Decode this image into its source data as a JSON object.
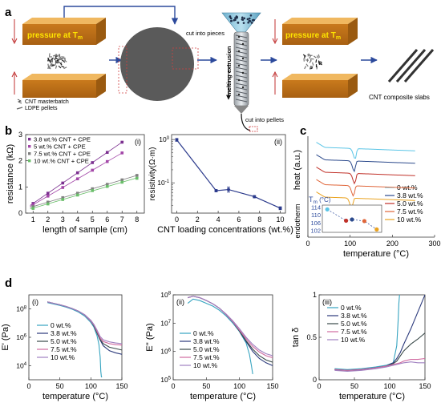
{
  "panel_labels": {
    "a": "a",
    "b": "b",
    "c": "c",
    "d": "d"
  },
  "panel_a": {
    "press1_text": "pressure at T",
    "press1_sub": "m",
    "legend_cnt": "CNT masterbatch",
    "legend_ldpe": "LDPE pellets",
    "cut_pieces": "cut into pieces",
    "melting": "melting extrusion",
    "cut_pellets": "cut into  pellets",
    "press2_text": "pressure at T",
    "press2_sub": "m",
    "slabs": "CNT composite slabs"
  },
  "chart_data": [
    {
      "id": "b-i",
      "type": "scatter",
      "panel_tag": "(i)",
      "xlabel": "length of sample (cm)",
      "ylabel": "resistance (kΩ)",
      "xlim": [
        0.5,
        8.5
      ],
      "ylim": [
        0,
        3
      ],
      "xticks": [
        1,
        2,
        3,
        4,
        5,
        6,
        7,
        8
      ],
      "yticks": [
        0,
        1,
        2,
        3
      ],
      "legend_position": "top-left",
      "series": [
        {
          "name": "3.8 wt.% CNT + CPE",
          "color": "#7b2f8f",
          "x": [
            1,
            2,
            3,
            4,
            5,
            6,
            7
          ],
          "y": [
            0.37,
            0.76,
            1.15,
            1.54,
            1.93,
            2.32,
            2.71
          ],
          "err": 0.04
        },
        {
          "name": "5 wt.% CNT + CPE",
          "color": "#a347a8",
          "x": [
            1,
            2,
            3,
            4,
            5,
            6,
            7
          ],
          "y": [
            0.32,
            0.65,
            0.98,
            1.31,
            1.64,
            1.97,
            2.3
          ],
          "err": 0.04
        },
        {
          "name": "7.5 wt.% CNT + CPE",
          "color": "#808080",
          "x": [
            1,
            2,
            3,
            4,
            5,
            6,
            7,
            8
          ],
          "y": [
            0.25,
            0.42,
            0.59,
            0.76,
            0.93,
            1.1,
            1.27,
            1.44
          ],
          "err": 0.03
        },
        {
          "name": "10 wt.% CNT + CPE",
          "color": "#6abe6a",
          "x": [
            1,
            2,
            3,
            4,
            5,
            6,
            7,
            8
          ],
          "y": [
            0.18,
            0.35,
            0.52,
            0.69,
            0.86,
            1.02,
            1.18,
            1.33
          ],
          "err": 0.03
        }
      ]
    },
    {
      "id": "b-ii",
      "type": "line",
      "panel_tag": "(ii)",
      "xlabel": "CNT loading concentrations (wt.%)",
      "ylabel": "resistivity(Ω·m)",
      "xlim": [
        -0.5,
        10.5
      ],
      "ylim": [
        0.02,
        1.3
      ],
      "yscale": "log",
      "xticks": [
        0,
        2,
        4,
        6,
        8,
        10
      ],
      "yticks": [
        {
          "v": 1,
          "label": "10",
          "exp": "0"
        },
        {
          "v": 0.1,
          "label": "10",
          "exp": "-1"
        }
      ],
      "series": [
        {
          "name": "",
          "color": "#2b3a8c",
          "x": [
            0,
            3.8,
            5,
            7.5,
            10
          ],
          "y": [
            0.98,
            0.066,
            0.07,
            0.048,
            0.026
          ],
          "err_lo": [
            0.91,
            0.062,
            0.061,
            0.045,
            0.024
          ],
          "err_hi": [
            1.06,
            0.07,
            0.08,
            0.051,
            0.028
          ]
        }
      ]
    },
    {
      "id": "c",
      "type": "line",
      "xlabel": "temperature (°C)",
      "ylabel": "heat (a.u.)",
      "ylabel2": "endotherm",
      "xlim": [
        0,
        300
      ],
      "xticks": [
        0,
        100,
        200,
        300
      ],
      "legend_position": "bottom-right",
      "series": [
        {
          "name": "0 wt.%",
          "color": "#5bc5e6",
          "offset": 4
        },
        {
          "name": "3.8 wt.%",
          "color": "#2c4a8c",
          "offset": 3
        },
        {
          "name": "5.0 wt.%",
          "color": "#c03028",
          "offset": 2
        },
        {
          "name": "7.5 wt.%",
          "color": "#e0663a",
          "offset": 1
        },
        {
          "name": "10 wt.%",
          "color": "#eaa320",
          "offset": 0
        }
      ],
      "inset": {
        "title": "T",
        "title_sub": "m",
        "title_unit": " (°C)",
        "yticks": [
          114,
          110,
          106,
          102
        ],
        "ylim": [
          101,
          115
        ],
        "xlim": [
          -1,
          11
        ],
        "points": [
          {
            "x": 0,
            "y": 112.8,
            "color": "#5bc5e6"
          },
          {
            "x": 3.8,
            "y": 107.0,
            "color": "#c03028"
          },
          {
            "x": 5,
            "y": 107.6,
            "color": "#2c4a8c"
          },
          {
            "x": 7.5,
            "y": 106.8,
            "color": "#e0663a"
          },
          {
            "x": 10,
            "y": 102.5,
            "color": "#eaa320"
          }
        ]
      }
    },
    {
      "id": "d-i",
      "type": "line",
      "panel_tag": "(i)",
      "xlabel": "temperature (°C)",
      "ylabel": "E' (Pa)",
      "xlim": [
        0,
        150
      ],
      "xticks": [
        0,
        50,
        100,
        150
      ],
      "yscale": "log",
      "ylim": [
        3,
        9
      ],
      "yticks": [
        {
          "v": 4,
          "label": "10",
          "exp": "4"
        },
        {
          "v": 6,
          "label": "10",
          "exp": "6"
        },
        {
          "v": 8,
          "label": "10",
          "exp": "8"
        }
      ],
      "series": [
        {
          "name": "0 wt.%",
          "color": "#36a4c0",
          "x": [
            30,
            40,
            50,
            60,
            70,
            80,
            90,
            100,
            105,
            110,
            113,
            115,
            116,
            117,
            118
          ],
          "y": [
            8.45,
            8.35,
            8.25,
            8.13,
            7.98,
            7.78,
            7.5,
            7.05,
            6.7,
            6.1,
            5.5,
            4.6,
            3.6,
            3.2,
            3.2
          ]
        },
        {
          "name": "3.8 wt.%",
          "color": "#2c3a7c",
          "x": [
            30,
            40,
            50,
            60,
            70,
            80,
            90,
            100,
            105,
            110,
            115,
            120,
            130,
            140,
            150
          ],
          "y": [
            8.5,
            8.4,
            8.3,
            8.18,
            8.03,
            7.85,
            7.58,
            7.15,
            6.8,
            6.3,
            5.8,
            5.4,
            5.05,
            4.9,
            4.8
          ]
        },
        {
          "name": "5.0 wt.%",
          "color": "#3a4a4a",
          "x": [
            30,
            40,
            50,
            60,
            70,
            80,
            90,
            100,
            105,
            110,
            115,
            120,
            130,
            140,
            150
          ],
          "y": [
            8.5,
            8.4,
            8.3,
            8.18,
            8.03,
            7.85,
            7.58,
            7.15,
            6.8,
            6.3,
            5.85,
            5.55,
            5.3,
            5.2,
            5.1
          ]
        },
        {
          "name": "7.5 wt.%",
          "color": "#d06aa0",
          "x": [
            30,
            40,
            50,
            60,
            70,
            80,
            90,
            100,
            105,
            110,
            115,
            120,
            130,
            140,
            150
          ],
          "y": [
            8.5,
            8.4,
            8.3,
            8.18,
            8.03,
            7.85,
            7.58,
            7.15,
            6.85,
            6.4,
            5.95,
            5.7,
            5.55,
            5.48,
            5.45
          ]
        },
        {
          "name": "10 wt.%",
          "color": "#a080c0",
          "x": [
            30,
            40,
            50,
            60,
            70,
            80,
            90,
            100,
            105,
            110,
            115,
            120,
            130,
            140,
            150
          ],
          "y": [
            8.5,
            8.4,
            8.3,
            8.18,
            8.03,
            7.85,
            7.6,
            7.2,
            6.9,
            6.5,
            6.05,
            5.82,
            5.68,
            5.6,
            5.55
          ]
        }
      ]
    },
    {
      "id": "d-ii",
      "type": "line",
      "panel_tag": "(ii)",
      "xlabel": "temperature (°C)",
      "ylabel": "E'' (Pa)",
      "xlim": [
        0,
        150
      ],
      "xticks": [
        0,
        50,
        100,
        150
      ],
      "yscale": "log",
      "ylim": [
        5,
        8
      ],
      "yticks": [
        {
          "v": 5,
          "label": "10",
          "exp": "5"
        },
        {
          "v": 6,
          "label": "10",
          "exp": "6"
        },
        {
          "v": 7,
          "label": "10",
          "exp": "7"
        },
        {
          "v": 8,
          "label": "10",
          "exp": "8"
        }
      ],
      "series": [
        {
          "name": "0 wt.%",
          "color": "#36a4c0",
          "x": [
            22,
            30,
            40,
            50,
            60,
            70,
            80,
            90,
            100,
            110,
            115,
            118,
            120
          ],
          "y": [
            7.7,
            7.85,
            7.8,
            7.7,
            7.6,
            7.45,
            7.25,
            7.0,
            6.7,
            6.3,
            5.9,
            5.5,
            5.2
          ]
        },
        {
          "name": "3.8 wt.%",
          "color": "#2c3a7c",
          "x": [
            22,
            30,
            40,
            50,
            60,
            70,
            80,
            90,
            100,
            110,
            120,
            130,
            140,
            150
          ],
          "y": [
            7.9,
            7.95,
            7.9,
            7.8,
            7.68,
            7.52,
            7.3,
            7.05,
            6.72,
            6.35,
            6.0,
            5.75,
            5.6,
            5.5
          ]
        },
        {
          "name": "5.0 wt.%",
          "color": "#3a4a4a",
          "x": [
            22,
            30,
            40,
            50,
            60,
            70,
            80,
            90,
            100,
            110,
            120,
            130,
            140,
            150
          ],
          "y": [
            7.9,
            7.95,
            7.9,
            7.8,
            7.68,
            7.52,
            7.3,
            7.05,
            6.72,
            6.38,
            6.08,
            5.85,
            5.7,
            5.62
          ]
        },
        {
          "name": "7.5 wt.%",
          "color": "#d06aa0",
          "x": [
            22,
            30,
            40,
            50,
            60,
            70,
            80,
            90,
            100,
            110,
            120,
            130,
            140,
            150
          ],
          "y": [
            7.9,
            7.95,
            7.9,
            7.8,
            7.68,
            7.52,
            7.3,
            7.05,
            6.75,
            6.45,
            6.18,
            5.98,
            5.85,
            5.78
          ]
        },
        {
          "name": "10 wt.%",
          "color": "#a080c0",
          "x": [
            22,
            30,
            40,
            50,
            60,
            70,
            80,
            90,
            100,
            110,
            120,
            130,
            140,
            150
          ],
          "y": [
            7.9,
            7.95,
            7.9,
            7.8,
            7.68,
            7.52,
            7.32,
            7.08,
            6.8,
            6.5,
            6.25,
            6.05,
            5.92,
            5.85
          ]
        }
      ]
    },
    {
      "id": "d-iii",
      "type": "line",
      "panel_tag": "(iii)",
      "xlabel": "temperature (°C)",
      "ylabel": "tan δ",
      "xlim": [
        0,
        150
      ],
      "xticks": [
        0,
        50,
        100,
        150
      ],
      "ylim": [
        0,
        1
      ],
      "yticks": [
        0,
        0.5,
        1
      ],
      "series": [
        {
          "name": "0 wt.%",
          "color": "#36a4c0",
          "x": [
            22,
            40,
            60,
            80,
            95,
            105,
            110,
            112,
            113,
            114
          ],
          "y": [
            0.13,
            0.12,
            0.13,
            0.15,
            0.17,
            0.2,
            0.4,
            0.7,
            0.9,
            1.0
          ]
        },
        {
          "name": "3.8 wt.%",
          "color": "#2c3a7c",
          "x": [
            22,
            40,
            60,
            80,
            95,
            105,
            110,
            115,
            120,
            130,
            140,
            150
          ],
          "y": [
            0.12,
            0.11,
            0.12,
            0.14,
            0.16,
            0.2,
            0.25,
            0.32,
            0.42,
            0.6,
            0.8,
            1.0
          ]
        },
        {
          "name": "5.0 wt.%",
          "color": "#3a4a4a",
          "x": [
            22,
            40,
            60,
            80,
            95,
            105,
            110,
            115,
            120,
            130,
            140,
            150
          ],
          "y": [
            0.12,
            0.11,
            0.12,
            0.14,
            0.16,
            0.19,
            0.22,
            0.28,
            0.34,
            0.42,
            0.48,
            0.55
          ]
        },
        {
          "name": "7.5 wt.%",
          "color": "#d06aa0",
          "x": [
            22,
            40,
            60,
            80,
            95,
            105,
            110,
            115,
            120,
            130,
            140,
            150
          ],
          "y": [
            0.12,
            0.11,
            0.12,
            0.14,
            0.16,
            0.18,
            0.19,
            0.2,
            0.22,
            0.24,
            0.24,
            0.25
          ]
        },
        {
          "name": "10 wt.%",
          "color": "#a080c0",
          "x": [
            22,
            40,
            60,
            80,
            95,
            105,
            110,
            115,
            120,
            130,
            140,
            150
          ],
          "y": [
            0.11,
            0.1,
            0.11,
            0.13,
            0.15,
            0.17,
            0.18,
            0.19,
            0.2,
            0.21,
            0.2,
            0.2
          ]
        }
      ]
    }
  ]
}
